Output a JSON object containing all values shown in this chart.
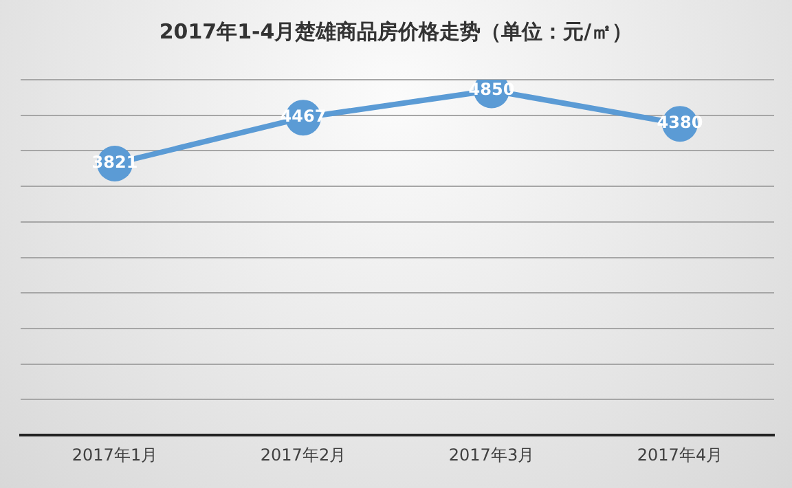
{
  "chart_data": {
    "type": "line",
    "title": "2017年1-4月楚雄商品房价格走势（单位：元/㎡）",
    "categories": [
      "2017年1月",
      "2017年2月",
      "2017年3月",
      "2017年4月"
    ],
    "series": [
      {
        "color": "#5b9bd5",
        "values": [
          3821,
          4467,
          4850,
          4380
        ]
      }
    ],
    "ylim": [
      0,
      5000
    ],
    "yticks": [
      {
        "value": 0,
        "label": null
      },
      {
        "value": 500,
        "label": null
      },
      {
        "value": 1000,
        "label": null
      },
      {
        "value": 1500,
        "label": null
      },
      {
        "value": 2000,
        "label": null
      },
      {
        "value": 2500,
        "label": null
      },
      {
        "value": 3000,
        "label": null
      },
      {
        "value": 3500,
        "label": null
      },
      {
        "value": 4000,
        "label": null
      },
      {
        "value": 4500,
        "label": null
      },
      {
        "value": 5000,
        "label": null
      }
    ],
    "tick_labels": "x",
    "grid": "y",
    "marker": "circle",
    "line_style": "solid",
    "data_labels": true,
    "legend": false
  }
}
